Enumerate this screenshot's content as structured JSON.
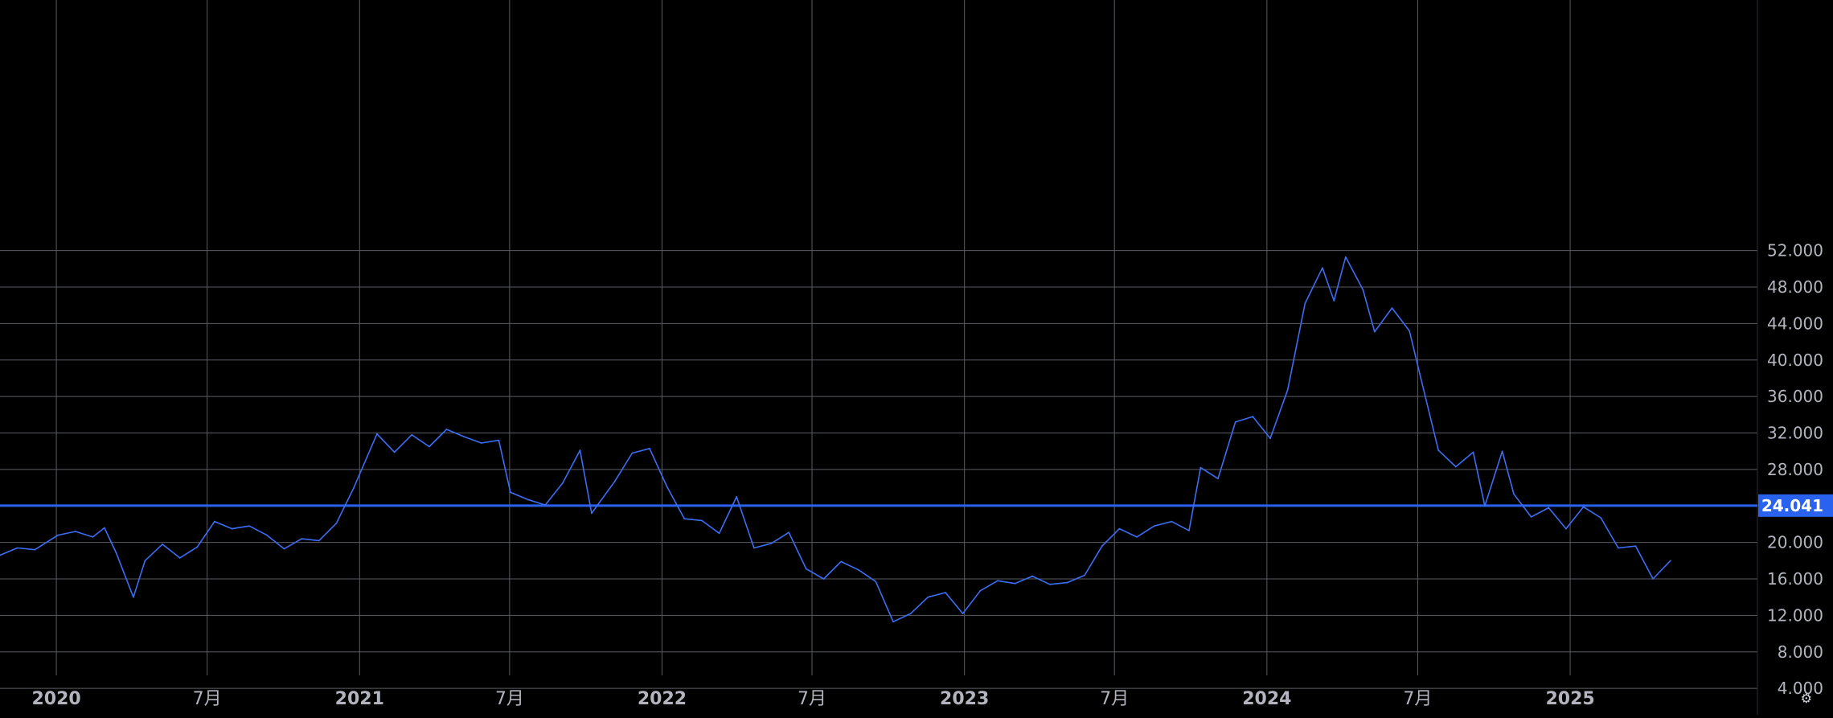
{
  "chart_data": {
    "type": "line",
    "x_range": [
      "2019-10-25",
      "2025-08-15"
    ],
    "ylim": [
      4000,
      54000
    ],
    "y_ticks": [
      {
        "value": 4000,
        "label": "4.000"
      },
      {
        "value": 8000,
        "label": "8.000"
      },
      {
        "value": 12000,
        "label": "12.000"
      },
      {
        "value": 16000,
        "label": "16.000"
      },
      {
        "value": 20000,
        "label": "20.000"
      },
      {
        "value": 24000,
        "label": "24.000"
      },
      {
        "value": 28000,
        "label": "28.000"
      },
      {
        "value": 32000,
        "label": "32.000"
      },
      {
        "value": 36000,
        "label": "36.000"
      },
      {
        "value": 40000,
        "label": "40.000"
      },
      {
        "value": 44000,
        "label": "44.000"
      },
      {
        "value": 48000,
        "label": "48.000"
      },
      {
        "value": 52000,
        "label": "52.000"
      }
    ],
    "x_ticks": [
      {
        "date": "2020-01-01",
        "label": "2020",
        "major": true
      },
      {
        "date": "2020-07-01",
        "label": "7月",
        "major": false
      },
      {
        "date": "2021-01-01",
        "label": "2021",
        "major": true
      },
      {
        "date": "2021-07-01",
        "label": "7月",
        "major": false
      },
      {
        "date": "2022-01-01",
        "label": "2022",
        "major": true
      },
      {
        "date": "2022-07-01",
        "label": "7月",
        "major": false
      },
      {
        "date": "2023-01-01",
        "label": "2023",
        "major": true
      },
      {
        "date": "2023-07-01",
        "label": "7月",
        "major": false
      },
      {
        "date": "2024-01-01",
        "label": "2024",
        "major": true
      },
      {
        "date": "2024-07-01",
        "label": "7月",
        "major": false
      },
      {
        "date": "2025-01-01",
        "label": "2025",
        "major": true
      }
    ],
    "grid": true,
    "price_line": {
      "value": 24041,
      "label": "24.041"
    },
    "colors": {
      "background": "#000000",
      "grid": "#5a5c63",
      "axis_text": "#b2b5be",
      "series": "#3b6ef5",
      "price_line": "#2a62f0",
      "price_label_bg": "#2a62f0",
      "price_label_text": "#ffffff"
    },
    "series": [
      {
        "values": [
          [
            "2019-10-25",
            18600
          ],
          [
            "2019-11-15",
            19400
          ],
          [
            "2019-12-06",
            19200
          ],
          [
            "2020-01-03",
            20800
          ],
          [
            "2020-01-24",
            21200
          ],
          [
            "2020-02-14",
            20600
          ],
          [
            "2020-02-28",
            21600
          ],
          [
            "2020-03-13",
            18900
          ],
          [
            "2020-04-03",
            14000
          ],
          [
            "2020-04-17",
            18000
          ],
          [
            "2020-05-08",
            19800
          ],
          [
            "2020-05-29",
            18300
          ],
          [
            "2020-06-19",
            19500
          ],
          [
            "2020-07-10",
            22300
          ],
          [
            "2020-07-31",
            21500
          ],
          [
            "2020-08-21",
            21800
          ],
          [
            "2020-09-11",
            20800
          ],
          [
            "2020-10-02",
            19300
          ],
          [
            "2020-10-23",
            20400
          ],
          [
            "2020-11-13",
            20200
          ],
          [
            "2020-12-04",
            22100
          ],
          [
            "2020-12-25",
            26000
          ],
          [
            "2021-01-22",
            31900
          ],
          [
            "2021-02-12",
            29900
          ],
          [
            "2021-03-05",
            31800
          ],
          [
            "2021-03-26",
            30500
          ],
          [
            "2021-04-16",
            32400
          ],
          [
            "2021-05-07",
            31600
          ],
          [
            "2021-05-28",
            30900
          ],
          [
            "2021-06-18",
            31200
          ],
          [
            "2021-07-02",
            25500
          ],
          [
            "2021-07-23",
            24700
          ],
          [
            "2021-08-13",
            24100
          ],
          [
            "2021-09-03",
            26500
          ],
          [
            "2021-09-24",
            30100
          ],
          [
            "2021-10-08",
            23200
          ],
          [
            "2021-11-05",
            26700
          ],
          [
            "2021-11-26",
            29800
          ],
          [
            "2021-12-17",
            30300
          ],
          [
            "2022-01-07",
            26100
          ],
          [
            "2022-01-28",
            22600
          ],
          [
            "2022-02-18",
            22400
          ],
          [
            "2022-03-11",
            21000
          ],
          [
            "2022-04-01",
            25000
          ],
          [
            "2022-04-22",
            19400
          ],
          [
            "2022-05-13",
            19900
          ],
          [
            "2022-06-03",
            21100
          ],
          [
            "2022-06-24",
            17100
          ],
          [
            "2022-07-15",
            16000
          ],
          [
            "2022-08-05",
            17900
          ],
          [
            "2022-08-26",
            17000
          ],
          [
            "2022-09-16",
            15700
          ],
          [
            "2022-10-07",
            11300
          ],
          [
            "2022-10-28",
            12200
          ],
          [
            "2022-11-18",
            14000
          ],
          [
            "2022-12-09",
            14500
          ],
          [
            "2022-12-30",
            12200
          ],
          [
            "2023-01-20",
            14700
          ],
          [
            "2023-02-10",
            15800
          ],
          [
            "2023-03-03",
            15500
          ],
          [
            "2023-03-24",
            16300
          ],
          [
            "2023-04-14",
            15400
          ],
          [
            "2023-05-05",
            15600
          ],
          [
            "2023-05-26",
            16400
          ],
          [
            "2023-06-16",
            19600
          ],
          [
            "2023-07-07",
            21500
          ],
          [
            "2023-07-28",
            20600
          ],
          [
            "2023-08-18",
            21800
          ],
          [
            "2023-09-08",
            22300
          ],
          [
            "2023-09-29",
            21300
          ],
          [
            "2023-10-13",
            28200
          ],
          [
            "2023-11-03",
            27000
          ],
          [
            "2023-11-24",
            33200
          ],
          [
            "2023-12-15",
            33800
          ],
          [
            "2024-01-05",
            31400
          ],
          [
            "2024-01-26",
            36700
          ],
          [
            "2024-02-16",
            46200
          ],
          [
            "2024-03-08",
            50100
          ],
          [
            "2024-03-22",
            46500
          ],
          [
            "2024-04-05",
            51300
          ],
          [
            "2024-04-26",
            47700
          ],
          [
            "2024-05-10",
            43100
          ],
          [
            "2024-05-31",
            45700
          ],
          [
            "2024-06-21",
            43200
          ],
          [
            "2024-07-05",
            37900
          ],
          [
            "2024-07-26",
            30100
          ],
          [
            "2024-08-16",
            28300
          ],
          [
            "2024-09-06",
            29900
          ],
          [
            "2024-09-20",
            24000
          ],
          [
            "2024-10-11",
            30000
          ],
          [
            "2024-10-25",
            25300
          ],
          [
            "2024-11-15",
            22800
          ],
          [
            "2024-12-06",
            23800
          ],
          [
            "2024-12-27",
            21500
          ],
          [
            "2025-01-17",
            23900
          ],
          [
            "2025-02-07",
            22700
          ],
          [
            "2025-02-28",
            19400
          ],
          [
            "2025-03-21",
            19600
          ],
          [
            "2025-04-11",
            16000
          ],
          [
            "2025-05-02",
            18000
          ]
        ]
      }
    ]
  },
  "ui": {
    "settings_icon": "gear-icon",
    "settings_glyph": "⚙"
  }
}
